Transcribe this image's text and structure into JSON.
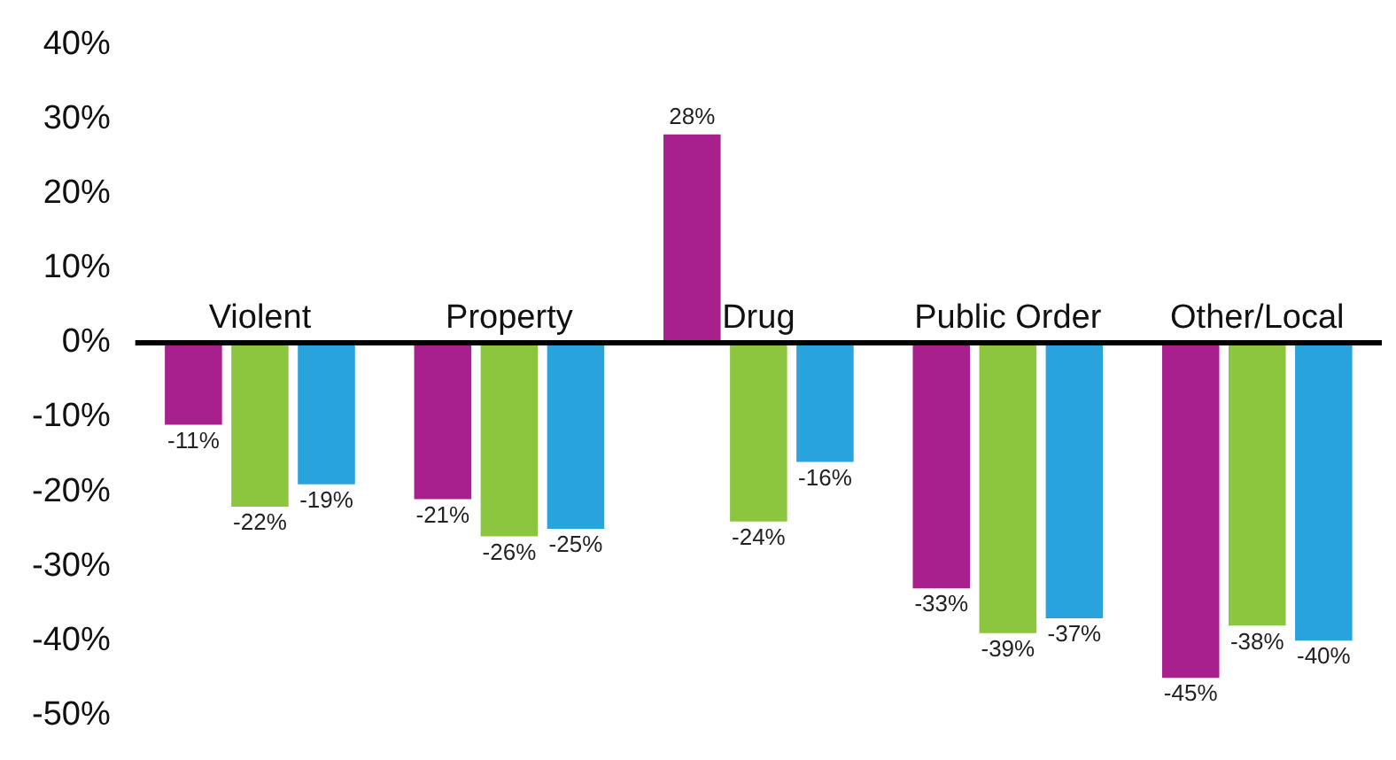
{
  "chart_data": {
    "type": "bar",
    "categories": [
      "Violent",
      "Property",
      "Drug",
      "Public Order",
      "Other/Local"
    ],
    "series": [
      {
        "color": "#a8208c",
        "values": [
          -11,
          -21,
          28,
          -33,
          -45
        ],
        "value_labels": [
          "-11%",
          "-21%",
          "28%",
          "-33%",
          "-45%"
        ]
      },
      {
        "color": "#8cc63f",
        "values": [
          -22,
          -26,
          -24,
          -39,
          -38
        ],
        "value_labels": [
          "-22%",
          "-26%",
          "-24%",
          "-39%",
          "-38%"
        ]
      },
      {
        "color": "#29a3dc",
        "values": [
          -19,
          -25,
          -16,
          -37,
          -40
        ],
        "value_labels": [
          "-19%",
          "-25%",
          "-16%",
          "-37%",
          "-40%"
        ]
      }
    ],
    "ylim": [
      -50,
      40
    ],
    "yticks": [
      {
        "value": -50,
        "label": "-50%"
      },
      {
        "value": -40,
        "label": "-40%"
      },
      {
        "value": -30,
        "label": "-30%"
      },
      {
        "value": -20,
        "label": "-20%"
      },
      {
        "value": -10,
        "label": "-10%"
      },
      {
        "value": 0,
        "label": "0%"
      },
      {
        "value": 10,
        "label": "10%"
      },
      {
        "value": 20,
        "label": "20%"
      },
      {
        "value": 30,
        "label": "30%"
      },
      {
        "value": 40,
        "label": "40%"
      }
    ],
    "grid": false,
    "legend": false
  }
}
